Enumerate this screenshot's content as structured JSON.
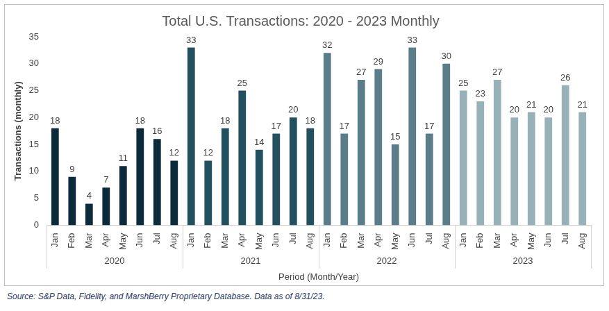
{
  "chart_data": {
    "type": "bar",
    "title": "Total U.S. Transactions: 2020 - 2023 Monthly",
    "x_label": "Period (Month/Year)",
    "y_label": "Transactions (monthly)",
    "source": "Source: S&P Data, Fidelity, and MarshBerry Proprietary Database. Data as of 8/31/23.",
    "categories": [
      "Jan",
      "Feb",
      "Mar",
      "Apr",
      "May",
      "Jun",
      "Jul",
      "Aug",
      "Jan",
      "Feb",
      "Mar",
      "Apr",
      "May",
      "Jun",
      "Jul",
      "Aug",
      "Jan",
      "Feb",
      "Mar",
      "Apr",
      "May",
      "Jun",
      "Jul",
      "Aug",
      "Jan",
      "Feb",
      "Mar",
      "Apr",
      "May",
      "Jun",
      "Jul",
      "Aug"
    ],
    "groups": [
      {
        "label": "2020",
        "count": 8
      },
      {
        "label": "2021",
        "count": 8
      },
      {
        "label": "2022",
        "count": 8
      },
      {
        "label": "2023",
        "count": 8
      }
    ],
    "values": [
      18,
      9,
      4,
      7,
      11,
      18,
      16,
      12,
      33,
      12,
      18,
      25,
      14,
      17,
      20,
      18,
      32,
      17,
      27,
      29,
      15,
      33,
      17,
      30,
      25,
      23,
      27,
      20,
      21,
      20,
      26,
      21
    ],
    "colors": [
      "#0b2a3a",
      "#0b2a3a",
      "#0b2a3a",
      "#0b2a3a",
      "#0b2a3a",
      "#0b2a3a",
      "#0b2a3a",
      "#0b2a3a",
      "#22505f",
      "#22505f",
      "#22505f",
      "#22505f",
      "#22505f",
      "#22505f",
      "#22505f",
      "#22505f",
      "#5b7d89",
      "#5b7d89",
      "#5b7d89",
      "#5b7d89",
      "#5b7d89",
      "#5b7d89",
      "#5b7d89",
      "#5b7d89",
      "#98b0b7",
      "#98b0b7",
      "#98b0b7",
      "#98b0b7",
      "#98b0b7",
      "#98b0b7",
      "#98b0b7",
      "#98b0b7"
    ],
    "ylim": [
      0,
      35
    ],
    "yticks": [
      0,
      5,
      10,
      15,
      20,
      25,
      30,
      35
    ],
    "grid": false,
    "data_labels": true
  }
}
